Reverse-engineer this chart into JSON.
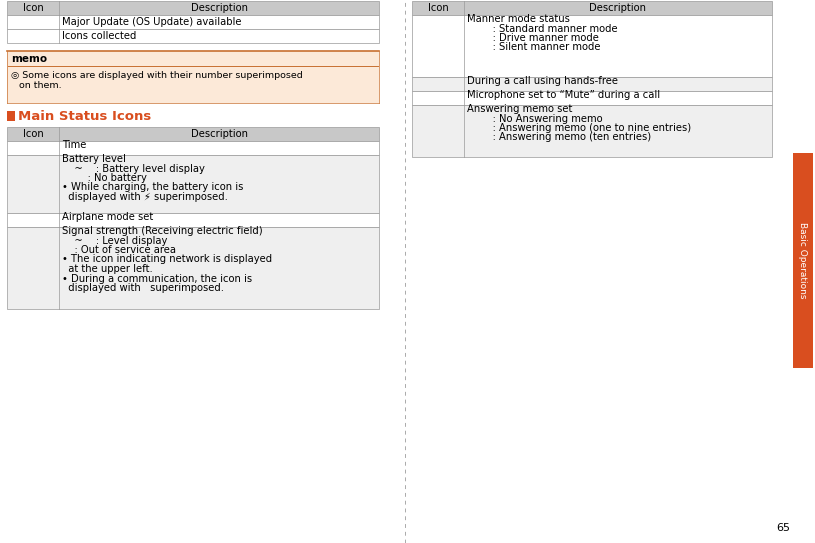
{
  "bg_color": "#ffffff",
  "page_num": "65",
  "sidebar_color": "#d94e1f",
  "sidebar_text": "Basic Operations",
  "memo_bg": "#fce9d8",
  "memo_title": "memo",
  "memo_line_color": "#cc6633",
  "memo_text": "◎ Some icons are displayed with their number superimposed\n    on them.",
  "section_square_color": "#d94e1f",
  "section_title": "Main Status Icons",
  "section_title_color": "#d94e1f",
  "top_table_rows": [
    [
      "Major Update (OS Update) available"
    ],
    [
      "Icons collected"
    ]
  ],
  "main_rows_desc": [
    [
      "Time"
    ],
    [
      "Battery level",
      "    ~  : Battery level display",
      "      : No battery",
      "• While charging, the battery icon is",
      "  displayed with ⚡ superimposed."
    ],
    [
      "Airplane mode set"
    ],
    [
      "Signal strength (Receiving electric field)",
      "    ~  : Level display",
      "    : Out of service area",
      "• The icon indicating network is displayed",
      "  at the upper left.",
      "• During a communication, the icon is",
      "  displayed with   superimposed."
    ]
  ],
  "right_rows_desc": [
    [
      "Manner mode status",
      "      : Standard manner mode",
      "      : Drive manner mode",
      "      : Silent manner mode"
    ],
    [
      "During a call using hands-free"
    ],
    [
      "Microphone set to “Mute” during a call"
    ],
    [
      "Answering memo set",
      "      : No Answering memo",
      "      : Answering memo (one to nine entries)",
      "      : Answering memo (ten entries)"
    ]
  ]
}
